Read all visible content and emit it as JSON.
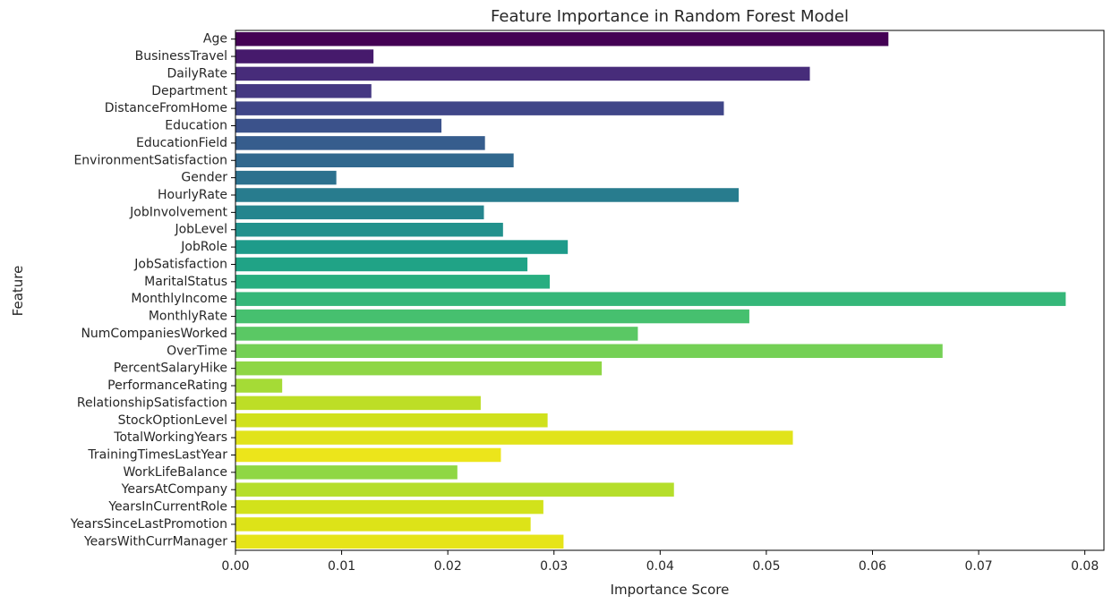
{
  "chart_data": {
    "type": "bar",
    "orientation": "horizontal",
    "title": "Feature Importance in Random Forest Model",
    "xlabel": "Importance Score",
    "ylabel": "Feature",
    "xlim": [
      0,
      0.0818
    ],
    "xticks": [
      "0.00",
      "0.01",
      "0.02",
      "0.03",
      "0.04",
      "0.05",
      "0.06",
      "0.07",
      "0.08"
    ],
    "xtick_values": [
      0,
      0.01,
      0.02,
      0.03,
      0.04,
      0.05,
      0.06,
      0.07,
      0.08
    ],
    "grid": false,
    "legend": "none",
    "colormap": "viridis",
    "categories": [
      "Age",
      "BusinessTravel",
      "DailyRate",
      "Department",
      "DistanceFromHome",
      "Education",
      "EducationField",
      "EnvironmentSatisfaction",
      "Gender",
      "HourlyRate",
      "JobInvolvement",
      "JobLevel",
      "JobRole",
      "JobSatisfaction",
      "MaritalStatus",
      "MonthlyIncome",
      "MonthlyRate",
      "NumCompaniesWorked",
      "OverTime",
      "PercentSalaryHike",
      "PerformanceRating",
      "RelationshipSatisfaction",
      "StockOptionLevel",
      "TotalWorkingYears",
      "TrainingTimesLastYear",
      "WorkLifeBalance",
      "YearsAtCompany",
      "YearsInCurrentRole",
      "YearsSinceLastPromotion",
      "YearsWithCurrManager"
    ],
    "values": [
      0.0615,
      0.013,
      0.0541,
      0.0128,
      0.046,
      0.0194,
      0.0235,
      0.0262,
      0.0095,
      0.0474,
      0.0234,
      0.0252,
      0.0313,
      0.0275,
      0.0296,
      0.0782,
      0.0484,
      0.0379,
      0.0666,
      0.0345,
      0.0044,
      0.0231,
      0.0294,
      0.0525,
      0.025,
      0.0209,
      0.0413,
      0.029,
      0.0278,
      0.0309
    ],
    "colors": [
      "#440154",
      "#461a6c",
      "#472c7a",
      "#453882",
      "#404688",
      "#3b528b",
      "#365d8d",
      "#31688e",
      "#2c718e",
      "#287c8e",
      "#25858e",
      "#21918c",
      "#1e9b8a",
      "#20a386",
      "#28ae80",
      "#35b779",
      "#46c06f",
      "#5ac864",
      "#74d055",
      "#8ed645",
      "#a5db36",
      "#bdde26",
      "#d0e11c",
      "#e1e31b",
      "#ece51b",
      "#8fd744",
      "#b5de2b",
      "#d2e21b",
      "#dde318",
      "#e6e419"
    ]
  }
}
